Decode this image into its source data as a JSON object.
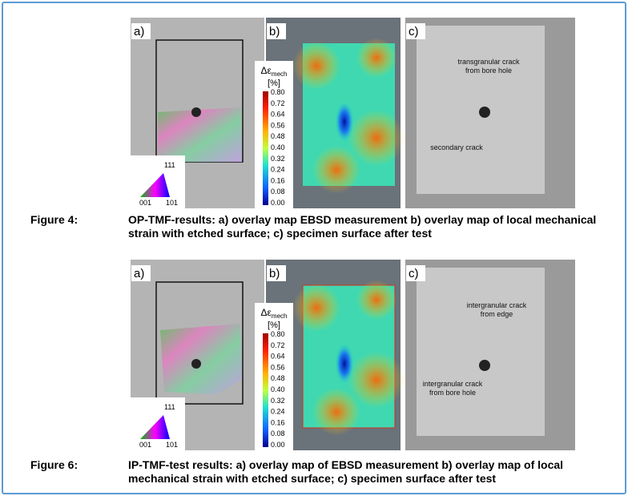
{
  "figures": [
    {
      "panels": [
        "a)",
        "b)",
        "c)"
      ],
      "ipf_legend": [
        "111",
        "001",
        "101"
      ],
      "colorbar": {
        "symbol": "Δε",
        "subscript": "mech",
        "unit": "[%]",
        "ticks": [
          "0.80",
          "0.72",
          "0.64",
          "0.56",
          "0.48",
          "0.40",
          "0.32",
          "0.24",
          "0.16",
          "0.08",
          "0.00"
        ]
      },
      "annotations": [
        {
          "lines": [
            "transgranular crack",
            "from bore hole"
          ]
        },
        {
          "lines": [
            "secondary crack"
          ]
        }
      ],
      "caption": {
        "label": "Figure 4:",
        "text": "OP-TMF-results: a) overlay map EBSD measurement b) overlay map of local mechanical strain with etched surface; c) specimen surface after test"
      }
    },
    {
      "panels": [
        "a)",
        "b)",
        "c)"
      ],
      "ipf_legend": [
        "111",
        "001",
        "101"
      ],
      "colorbar": {
        "symbol": "Δε",
        "subscript": "mech",
        "unit": "[%]",
        "ticks": [
          "0.80",
          "0.72",
          "0.64",
          "0.56",
          "0.48",
          "0.40",
          "0.32",
          "0.24",
          "0.16",
          "0.08",
          "0.00"
        ]
      },
      "annotations": [
        {
          "lines": [
            "intergranular crack",
            "from edge"
          ]
        },
        {
          "lines": [
            "intergranular crack",
            "from bore hole"
          ]
        }
      ],
      "caption": {
        "label": "Figure 6:",
        "text": "IP-TMF-test results: a) overlay map of EBSD measurement b) overlay map of local mechanical strain with etched surface; c) specimen surface after test"
      }
    }
  ]
}
